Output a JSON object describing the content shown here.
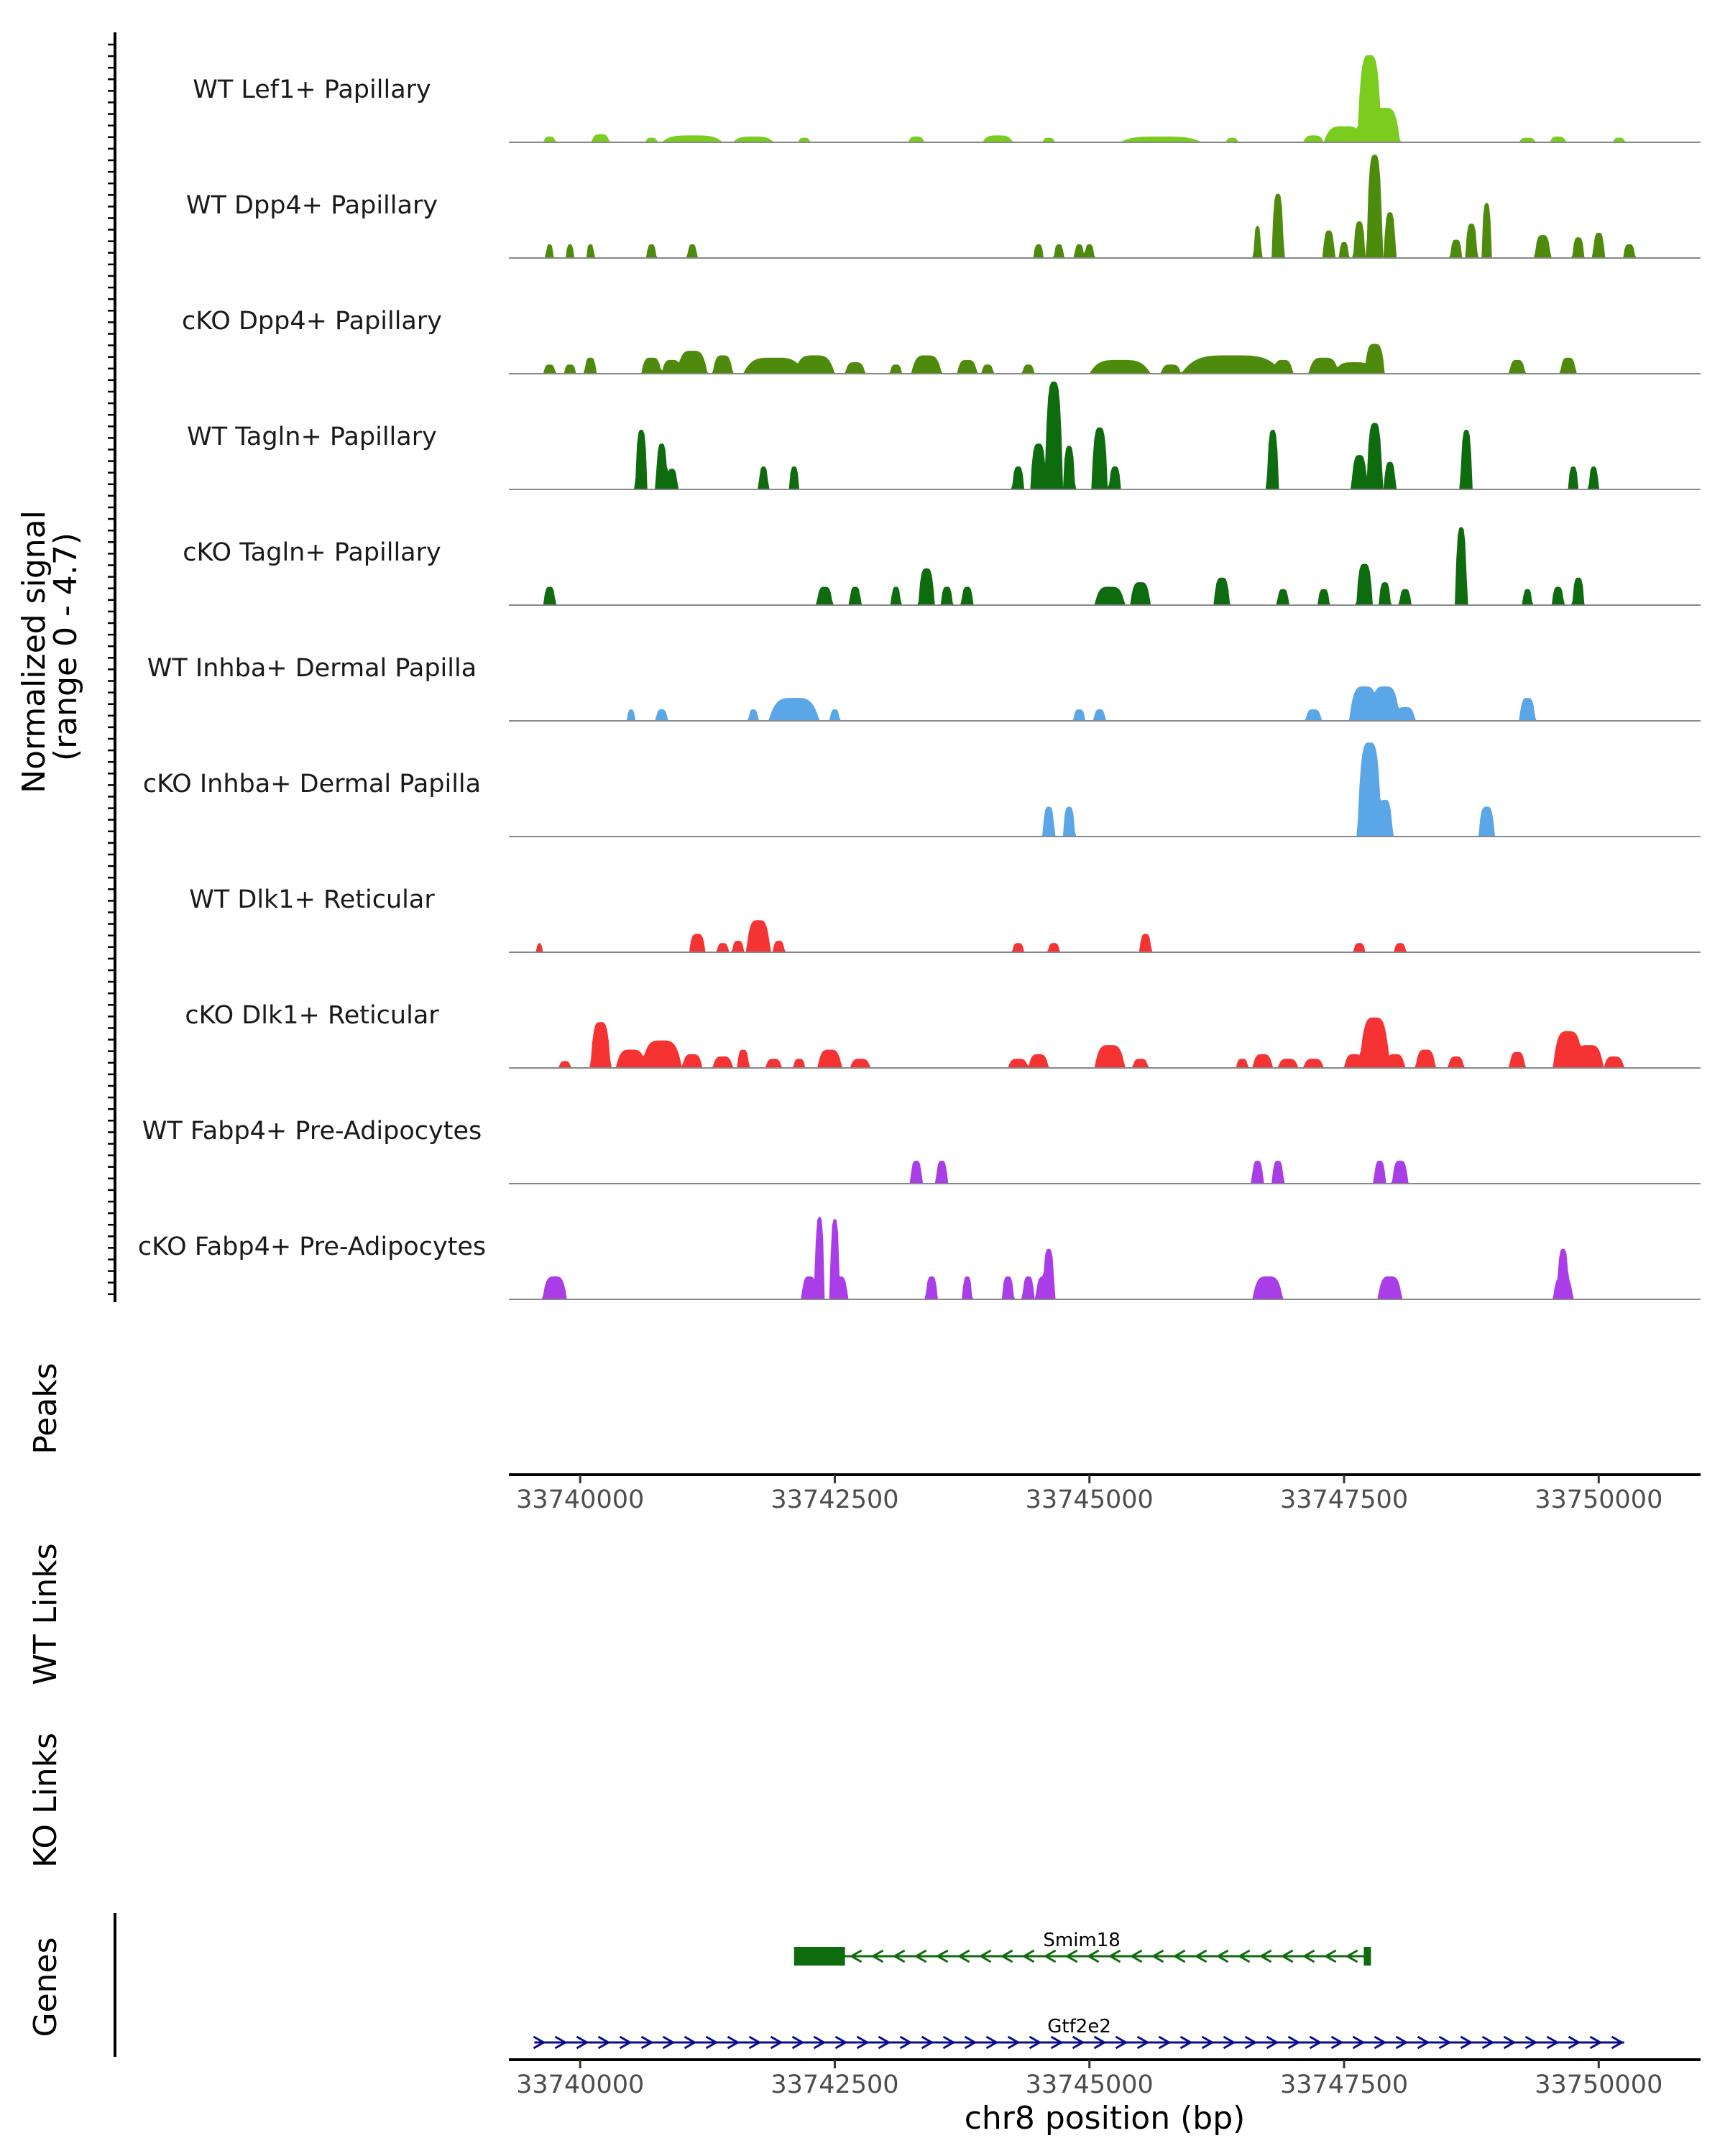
{
  "chart_data": {
    "type": "area",
    "title": "",
    "ylabel_line1": "Normalized signal",
    "ylabel_line2": "(range 0 - 4.7)",
    "ylim": [
      0,
      4.7
    ],
    "xlabel": "chr8 position (bp)",
    "xlim": [
      33739300,
      33751000
    ],
    "xticks": [
      33740000,
      33742500,
      33745000,
      33747500,
      33750000
    ],
    "xtick_labels": [
      "33740000",
      "33742500",
      "33745000",
      "33747500",
      "33750000"
    ],
    "tracks": [
      {
        "name": "WT Lef1+ Papillary",
        "color": "#7acd1e",
        "peaks": [
          [
            33739700,
            0.25,
            60
          ],
          [
            33740200,
            0.35,
            90
          ],
          [
            33740700,
            0.2,
            60
          ],
          [
            33741100,
            0.3,
            300
          ],
          [
            33741700,
            0.25,
            200
          ],
          [
            33742200,
            0.2,
            60
          ],
          [
            33743300,
            0.25,
            80
          ],
          [
            33744100,
            0.3,
            150
          ],
          [
            33744600,
            0.2,
            60
          ],
          [
            33745700,
            0.25,
            400
          ],
          [
            33746400,
            0.2,
            60
          ],
          [
            33747200,
            0.3,
            100
          ],
          [
            33747500,
            0.7,
            200
          ],
          [
            33747750,
            3.8,
            120
          ],
          [
            33747900,
            1.5,
            150
          ],
          [
            33749300,
            0.2,
            80
          ],
          [
            33749600,
            0.25,
            80
          ],
          [
            33750200,
            0.2,
            60
          ]
        ]
      },
      {
        "name": "WT Dpp4+ Papillary",
        "color": "#4e8b0c",
        "peaks": [
          [
            33739700,
            0.6,
            40
          ],
          [
            33739900,
            0.6,
            40
          ],
          [
            33740100,
            0.6,
            40
          ],
          [
            33740700,
            0.6,
            50
          ],
          [
            33741100,
            0.6,
            50
          ],
          [
            33744500,
            0.6,
            50
          ],
          [
            33744700,
            0.6,
            50
          ],
          [
            33744900,
            0.6,
            50
          ],
          [
            33745000,
            0.6,
            50
          ],
          [
            33746650,
            1.4,
            40
          ],
          [
            33746850,
            2.8,
            60
          ],
          [
            33747350,
            1.2,
            60
          ],
          [
            33747500,
            0.7,
            50
          ],
          [
            33747650,
            1.6,
            60
          ],
          [
            33747800,
            4.5,
            80
          ],
          [
            33747950,
            2.0,
            60
          ],
          [
            33748600,
            0.8,
            60
          ],
          [
            33748750,
            1.5,
            60
          ],
          [
            33748900,
            2.4,
            50
          ],
          [
            33749450,
            1.0,
            80
          ],
          [
            33749800,
            0.9,
            60
          ],
          [
            33750000,
            1.1,
            60
          ],
          [
            33750300,
            0.6,
            60
          ]
        ]
      },
      {
        "name": "cKO Dpp4+ Papillary",
        "color": "#4e8b0c",
        "peaks": [
          [
            33739700,
            0.4,
            60
          ],
          [
            33739900,
            0.4,
            60
          ],
          [
            33740100,
            0.7,
            60
          ],
          [
            33740700,
            0.7,
            100
          ],
          [
            33740900,
            0.6,
            100
          ],
          [
            33741100,
            1.0,
            150
          ],
          [
            33741400,
            0.8,
            100
          ],
          [
            33741900,
            0.7,
            300
          ],
          [
            33742300,
            0.8,
            200
          ],
          [
            33742700,
            0.5,
            100
          ],
          [
            33743100,
            0.4,
            60
          ],
          [
            33743400,
            0.8,
            150
          ],
          [
            33743800,
            0.6,
            100
          ],
          [
            33744000,
            0.4,
            60
          ],
          [
            33744400,
            0.4,
            60
          ],
          [
            33745300,
            0.6,
            300
          ],
          [
            33745800,
            0.4,
            100
          ],
          [
            33746400,
            0.8,
            500
          ],
          [
            33746900,
            0.6,
            100
          ],
          [
            33747300,
            0.7,
            150
          ],
          [
            33747600,
            0.5,
            200
          ],
          [
            33747800,
            1.3,
            100
          ],
          [
            33749200,
            0.6,
            80
          ],
          [
            33749700,
            0.7,
            80
          ]
        ]
      },
      {
        "name": "WT Tagln+ Papillary",
        "color": "#0e6b0e",
        "peaks": [
          [
            33740600,
            2.6,
            60
          ],
          [
            33740800,
            2.0,
            60
          ],
          [
            33740900,
            0.9,
            60
          ],
          [
            33741800,
            1.0,
            50
          ],
          [
            33742100,
            1.0,
            50
          ],
          [
            33744300,
            1.0,
            60
          ],
          [
            33744500,
            2.0,
            80
          ],
          [
            33744650,
            4.7,
            90
          ],
          [
            33744800,
            1.9,
            60
          ],
          [
            33745100,
            2.7,
            80
          ],
          [
            33745250,
            1.0,
            60
          ],
          [
            33746800,
            2.6,
            60
          ],
          [
            33747650,
            1.5,
            80
          ],
          [
            33747800,
            2.9,
            80
          ],
          [
            33747950,
            1.2,
            60
          ],
          [
            33748700,
            2.6,
            60
          ],
          [
            33749750,
            1.0,
            50
          ],
          [
            33749950,
            1.0,
            50
          ]
        ]
      },
      {
        "name": "cKO Tagln+ Papillary",
        "color": "#0e6b0e",
        "peaks": [
          [
            33739700,
            0.8,
            60
          ],
          [
            33742400,
            0.8,
            80
          ],
          [
            33742700,
            0.8,
            60
          ],
          [
            33743100,
            0.8,
            50
          ],
          [
            33743400,
            1.6,
            80
          ],
          [
            33743600,
            0.8,
            60
          ],
          [
            33743800,
            0.8,
            60
          ],
          [
            33745200,
            0.8,
            150
          ],
          [
            33745500,
            1.0,
            100
          ],
          [
            33746300,
            1.2,
            80
          ],
          [
            33746900,
            0.7,
            60
          ],
          [
            33747300,
            0.7,
            60
          ],
          [
            33747700,
            1.8,
            80
          ],
          [
            33747900,
            1.0,
            60
          ],
          [
            33748100,
            0.7,
            60
          ],
          [
            33748650,
            3.4,
            60
          ],
          [
            33749300,
            0.7,
            50
          ],
          [
            33749600,
            0.8,
            60
          ],
          [
            33749800,
            1.2,
            60
          ]
        ]
      },
      {
        "name": "WT Inhba+ Dermal Papilla",
        "color": "#5ba6e6",
        "peaks": [
          [
            33740500,
            0.5,
            40
          ],
          [
            33740800,
            0.5,
            60
          ],
          [
            33741700,
            0.5,
            50
          ],
          [
            33742100,
            1.0,
            250
          ],
          [
            33742500,
            0.5,
            50
          ],
          [
            33744900,
            0.5,
            60
          ],
          [
            33745100,
            0.5,
            60
          ],
          [
            33747200,
            0.5,
            80
          ],
          [
            33747700,
            1.5,
            150
          ],
          [
            33747900,
            1.5,
            150
          ],
          [
            33748100,
            0.6,
            100
          ],
          [
            33749300,
            1.0,
            80
          ]
        ]
      },
      {
        "name": "cKO Inhba+ Dermal Papilla",
        "color": "#5ba6e6",
        "peaks": [
          [
            33744600,
            1.3,
            60
          ],
          [
            33744800,
            1.3,
            60
          ],
          [
            33747750,
            4.1,
            120
          ],
          [
            33747900,
            1.6,
            80
          ],
          [
            33748900,
            1.3,
            80
          ]
        ]
      },
      {
        "name": "WT Dlk1+ Reticular",
        "color": "#f53333",
        "peaks": [
          [
            33739600,
            0.4,
            30
          ],
          [
            33741150,
            0.8,
            80
          ],
          [
            33741400,
            0.4,
            60
          ],
          [
            33741550,
            0.5,
            60
          ],
          [
            33741750,
            1.4,
            120
          ],
          [
            33741950,
            0.5,
            60
          ],
          [
            33744300,
            0.4,
            60
          ],
          [
            33744650,
            0.4,
            60
          ],
          [
            33745550,
            0.8,
            60
          ],
          [
            33747650,
            0.4,
            60
          ],
          [
            33748050,
            0.4,
            60
          ]
        ]
      },
      {
        "name": "cKO Dlk1+ Reticular",
        "color": "#f53333",
        "peaks": [
          [
            33739850,
            0.3,
            60
          ],
          [
            33740200,
            2.0,
            100
          ],
          [
            33740500,
            0.8,
            150
          ],
          [
            33740800,
            1.2,
            200
          ],
          [
            33741100,
            0.6,
            100
          ],
          [
            33741400,
            0.5,
            100
          ],
          [
            33741600,
            0.8,
            60
          ],
          [
            33741900,
            0.4,
            80
          ],
          [
            33742150,
            0.4,
            60
          ],
          [
            33742450,
            0.8,
            120
          ],
          [
            33742750,
            0.4,
            100
          ],
          [
            33744300,
            0.4,
            100
          ],
          [
            33744500,
            0.6,
            100
          ],
          [
            33745200,
            1.0,
            150
          ],
          [
            33745500,
            0.4,
            80
          ],
          [
            33746500,
            0.4,
            60
          ],
          [
            33746700,
            0.6,
            100
          ],
          [
            33746950,
            0.4,
            100
          ],
          [
            33747200,
            0.4,
            100
          ],
          [
            33747600,
            0.6,
            100
          ],
          [
            33747800,
            2.2,
            150
          ],
          [
            33748000,
            0.6,
            100
          ],
          [
            33748300,
            0.8,
            100
          ],
          [
            33748600,
            0.5,
            80
          ],
          [
            33749200,
            0.7,
            80
          ],
          [
            33749700,
            1.6,
            150
          ],
          [
            33749900,
            1.0,
            150
          ],
          [
            33750150,
            0.5,
            100
          ]
        ]
      },
      {
        "name": "WT Fabp4+ Pre-Adipocytes",
        "color": "#a93ee8",
        "peaks": [
          [
            33743300,
            1.0,
            60
          ],
          [
            33743550,
            1.0,
            60
          ],
          [
            33746650,
            1.0,
            60
          ],
          [
            33746850,
            1.0,
            60
          ],
          [
            33747850,
            1.0,
            60
          ],
          [
            33748050,
            1.0,
            80
          ]
        ]
      },
      {
        "name": "cKO Fabp4+ Pre-Adipocytes",
        "color": "#a93ee8",
        "peaks": [
          [
            33739750,
            1.0,
            120
          ],
          [
            33742250,
            1.0,
            80
          ],
          [
            33742350,
            3.6,
            50
          ],
          [
            33742500,
            3.5,
            50
          ],
          [
            33742550,
            1.0,
            80
          ],
          [
            33743450,
            1.0,
            60
          ],
          [
            33743800,
            1.0,
            50
          ],
          [
            33744200,
            1.0,
            60
          ],
          [
            33744400,
            1.0,
            60
          ],
          [
            33744600,
            2.2,
            60
          ],
          [
            33744550,
            1.0,
            80
          ],
          [
            33746750,
            1.0,
            150
          ],
          [
            33747950,
            1.0,
            120
          ],
          [
            33749650,
            2.2,
            60
          ],
          [
            33749650,
            1.0,
            100
          ]
        ]
      }
    ]
  },
  "panels": {
    "peaks_label": "Peaks",
    "wt_links_label": "WT Links",
    "ko_links_label": "KO Links",
    "genes_label": "Genes"
  },
  "genes": [
    {
      "name": "Smim18",
      "start": 33742100,
      "end": 33747750,
      "strand": "-",
      "color": "#0e6b0e",
      "exon_end": 33742600
    },
    {
      "name": "Gtf2e2",
      "start": 33739550,
      "end": 33750250,
      "strand": "+",
      "color": "#0a0a8c"
    }
  ]
}
